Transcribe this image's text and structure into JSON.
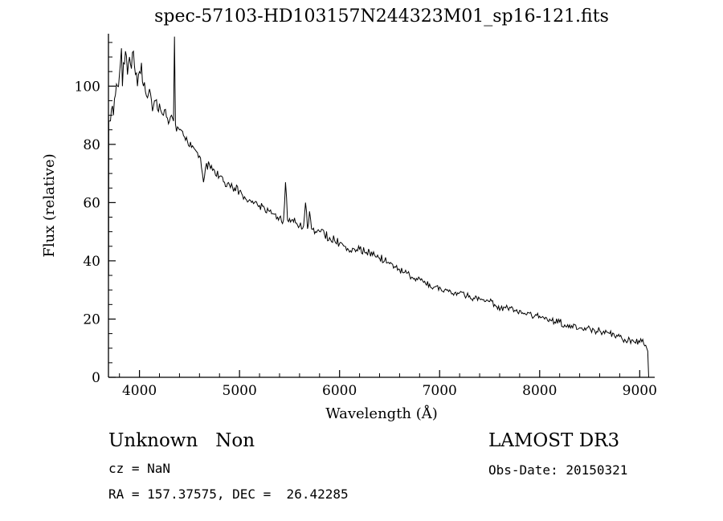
{
  "title": "spec-57103-HD103157N244323M01_sp16-121.fits",
  "chart_data": {
    "type": "line",
    "title": "spec-57103-HD103157N244323M01_sp16-121.fits",
    "xlabel": "Wavelength (Å)",
    "ylabel": "Flux (relative)",
    "xlim": [
      3690,
      9150
    ],
    "ylim": [
      0,
      118
    ],
    "x_ticks": [
      4000,
      5000,
      6000,
      7000,
      8000,
      9000
    ],
    "y_ticks": [
      0,
      20,
      40,
      60,
      80,
      100
    ],
    "x_minor_step": 200,
    "y_minor_step": 5,
    "grid": false,
    "legend": "none",
    "line_color": "#000000",
    "background": "#ffffff",
    "noise_segments": [
      {
        "until": 4400,
        "amp": 2.6
      },
      {
        "until": 6500,
        "amp": 1.5
      },
      {
        "until": 9200,
        "amp": 1.2
      }
    ],
    "points": [
      [
        3691,
        90
      ],
      [
        3692,
        35
      ],
      [
        3693,
        88
      ],
      [
        3700,
        88
      ],
      [
        3720,
        92
      ],
      [
        3740,
        90
      ],
      [
        3760,
        97
      ],
      [
        3780,
        100
      ],
      [
        3800,
        104
      ],
      [
        3820,
        113
      ],
      [
        3830,
        100
      ],
      [
        3840,
        108
      ],
      [
        3860,
        112
      ],
      [
        3880,
        104
      ],
      [
        3900,
        110
      ],
      [
        3920,
        106
      ],
      [
        3940,
        112
      ],
      [
        3960,
        104
      ],
      [
        3980,
        100
      ],
      [
        4000,
        105
      ],
      [
        4020,
        108
      ],
      [
        4040,
        100
      ],
      [
        4060,
        98
      ],
      [
        4080,
        96
      ],
      [
        4100,
        99
      ],
      [
        4120,
        95
      ],
      [
        4140,
        93
      ],
      [
        4160,
        95
      ],
      [
        4180,
        92
      ],
      [
        4200,
        94
      ],
      [
        4220,
        91
      ],
      [
        4240,
        90
      ],
      [
        4260,
        92
      ],
      [
        4280,
        89
      ],
      [
        4300,
        88
      ],
      [
        4320,
        90
      ],
      [
        4340,
        88
      ],
      [
        4350,
        117
      ],
      [
        4360,
        87
      ],
      [
        4380,
        86
      ],
      [
        4400,
        85
      ],
      [
        4440,
        83
      ],
      [
        4480,
        81
      ],
      [
        4520,
        79
      ],
      [
        4560,
        78
      ],
      [
        4600,
        76
      ],
      [
        4620,
        72
      ],
      [
        4640,
        67
      ],
      [
        4660,
        72
      ],
      [
        4700,
        73
      ],
      [
        4750,
        71
      ],
      [
        4800,
        69
      ],
      [
        4850,
        67
      ],
      [
        4900,
        66
      ],
      [
        4950,
        65
      ],
      [
        5000,
        64
      ],
      [
        5050,
        62
      ],
      [
        5100,
        61
      ],
      [
        5150,
        60
      ],
      [
        5200,
        59
      ],
      [
        5250,
        58
      ],
      [
        5300,
        57
      ],
      [
        5350,
        56
      ],
      [
        5400,
        55
      ],
      [
        5440,
        54
      ],
      [
        5460,
        67
      ],
      [
        5480,
        54
      ],
      [
        5520,
        54
      ],
      [
        5560,
        53
      ],
      [
        5600,
        52
      ],
      [
        5640,
        52
      ],
      [
        5660,
        60
      ],
      [
        5680,
        51
      ],
      [
        5700,
        57
      ],
      [
        5720,
        51
      ],
      [
        5760,
        50
      ],
      [
        5800,
        50
      ],
      [
        5850,
        49
      ],
      [
        5900,
        48
      ],
      [
        5950,
        47
      ],
      [
        6000,
        46
      ],
      [
        6050,
        45
      ],
      [
        6100,
        43
      ],
      [
        6150,
        44
      ],
      [
        6200,
        44
      ],
      [
        6250,
        43
      ],
      [
        6300,
        43
      ],
      [
        6350,
        42
      ],
      [
        6400,
        41
      ],
      [
        6450,
        40
      ],
      [
        6500,
        39
      ],
      [
        6550,
        38
      ],
      [
        6600,
        37
      ],
      [
        6650,
        36
      ],
      [
        6700,
        35
      ],
      [
        6750,
        34
      ],
      [
        6800,
        34
      ],
      [
        6850,
        33
      ],
      [
        6900,
        32
      ],
      [
        6950,
        31
      ],
      [
        7000,
        31
      ],
      [
        7050,
        30
      ],
      [
        7100,
        30
      ],
      [
        7150,
        29
      ],
      [
        7200,
        29
      ],
      [
        7250,
        28
      ],
      [
        7300,
        28
      ],
      [
        7350,
        27
      ],
      [
        7400,
        27
      ],
      [
        7450,
        26
      ],
      [
        7500,
        26
      ],
      [
        7550,
        25
      ],
      [
        7600,
        23
      ],
      [
        7650,
        24
      ],
      [
        7700,
        24
      ],
      [
        7750,
        23
      ],
      [
        7800,
        23
      ],
      [
        7850,
        22
      ],
      [
        7900,
        22
      ],
      [
        7950,
        21
      ],
      [
        8000,
        21
      ],
      [
        8050,
        20
      ],
      [
        8100,
        20
      ],
      [
        8150,
        19
      ],
      [
        8200,
        19
      ],
      [
        8250,
        18
      ],
      [
        8300,
        18
      ],
      [
        8350,
        18
      ],
      [
        8400,
        17
      ],
      [
        8450,
        17
      ],
      [
        8500,
        17
      ],
      [
        8550,
        16
      ],
      [
        8600,
        16
      ],
      [
        8650,
        15
      ],
      [
        8700,
        15
      ],
      [
        8750,
        14
      ],
      [
        8800,
        14
      ],
      [
        8850,
        13
      ],
      [
        8900,
        13
      ],
      [
        8950,
        12
      ],
      [
        9000,
        12
      ],
      [
        9030,
        13
      ],
      [
        9060,
        11
      ],
      [
        9080,
        9
      ],
      [
        9090,
        0
      ]
    ]
  },
  "footer": {
    "class_label": "Unknown   Non",
    "cz": "cz = NaN",
    "radec": "RA = 157.37575, DEC =  26.42285",
    "survey": "LAMOST DR3",
    "obs_date": "Obs-Date: 20150321"
  }
}
